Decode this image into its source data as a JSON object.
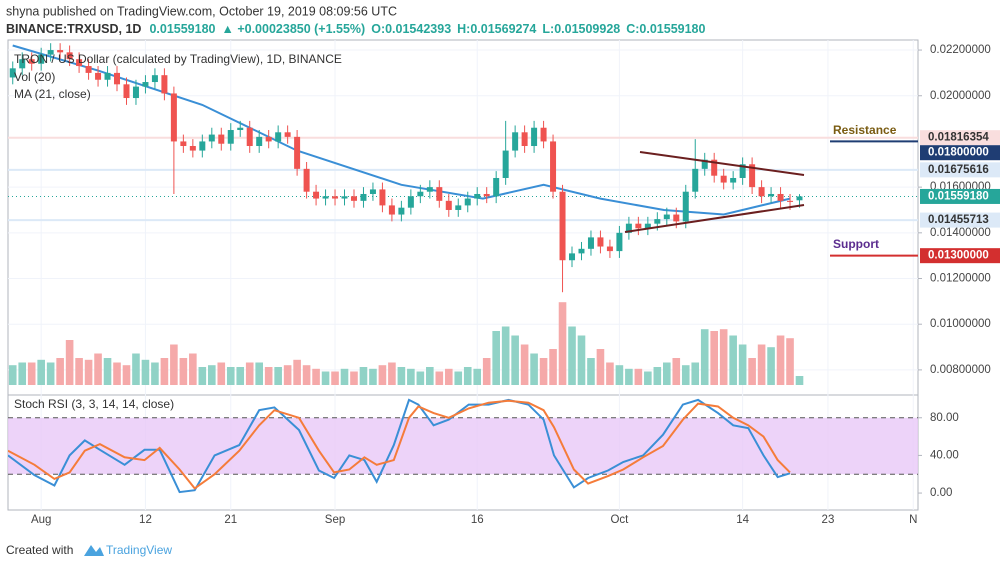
{
  "header": {
    "published": "shyna published on TradingView.com, October 19, 2019 08:09:56 UTC",
    "symbol": "BINANCE:TRXUSD, 1D",
    "price": "0.01559180",
    "change": "▲ +0.00023850 (+1.55%)",
    "open": "O:0.01542393",
    "high": "H:0.01569274",
    "low": "L:0.01509928",
    "close": "C:0.01559180"
  },
  "footer": {
    "created": "Created with",
    "brand": "TradingView"
  },
  "chart_data": {
    "type": "candlestick",
    "title": "TRON / US Dollar (calculated by TradingView), 1D, BINANCE",
    "up_color": "#26a69a",
    "down_color": "#ef5350",
    "open": [
      0.0208,
      0.0212,
      0.0216,
      0.0214,
      0.0218,
      0.022,
      0.0219,
      0.0216,
      0.0213,
      0.021,
      0.0207,
      0.021,
      0.0205,
      0.0199,
      0.0204,
      0.0206,
      0.0209,
      0.0201,
      0.018,
      0.0178,
      0.0176,
      0.018,
      0.0183,
      0.0179,
      0.0185,
      0.0186,
      0.0178,
      0.0182,
      0.018,
      0.0184,
      0.0182,
      0.0168,
      0.0158,
      0.0155,
      0.0156,
      0.0155,
      0.0156,
      0.0154,
      0.0157,
      0.0159,
      0.0152,
      0.0148,
      0.0151,
      0.0156,
      0.0158,
      0.016,
      0.0154,
      0.015,
      0.0152,
      0.0155,
      0.0157,
      0.0156,
      0.0164,
      0.0176,
      0.0184,
      0.0178,
      0.0186,
      0.018,
      0.0158,
      0.0128,
      0.0131,
      0.0133,
      0.0138,
      0.0134,
      0.0132,
      0.014,
      0.0144,
      0.0142,
      0.0144,
      0.0146,
      0.0148,
      0.0145,
      0.0158,
      0.0168,
      0.0172,
      0.0165,
      0.0162,
      0.0164,
      0.017,
      0.016,
      0.0156,
      0.0157,
      0.0154,
      0.01542393
    ],
    "high": [
      0.0215,
      0.0219,
      0.0219,
      0.0221,
      0.0223,
      0.0223,
      0.0222,
      0.0219,
      0.0216,
      0.0213,
      0.0213,
      0.0213,
      0.0208,
      0.0207,
      0.0209,
      0.0212,
      0.0212,
      0.0204,
      0.0183,
      0.0181,
      0.0183,
      0.0186,
      0.0186,
      0.0188,
      0.0189,
      0.0189,
      0.0185,
      0.0185,
      0.0187,
      0.0187,
      0.0185,
      0.0171,
      0.0161,
      0.0159,
      0.0159,
      0.0159,
      0.0159,
      0.016,
      0.0162,
      0.0162,
      0.0155,
      0.0154,
      0.0159,
      0.0161,
      0.0163,
      0.0163,
      0.0157,
      0.0155,
      0.0158,
      0.016,
      0.016,
      0.0167,
      0.0189,
      0.0187,
      0.0187,
      0.0189,
      0.0189,
      0.0183,
      0.0161,
      0.0134,
      0.0136,
      0.0141,
      0.0141,
      0.0137,
      0.0143,
      0.0147,
      0.0147,
      0.0147,
      0.0149,
      0.0151,
      0.0151,
      0.0161,
      0.0181,
      0.0175,
      0.0175,
      0.0168,
      0.0167,
      0.0173,
      0.0173,
      0.0163,
      0.016,
      0.016,
      0.0157,
      0.01569274
    ],
    "low": [
      0.0205,
      0.0209,
      0.0211,
      0.0211,
      0.0215,
      0.0216,
      0.0213,
      0.021,
      0.0207,
      0.0204,
      0.0204,
      0.0202,
      0.0196,
      0.0196,
      0.0201,
      0.0203,
      0.0198,
      0.0157,
      0.0175,
      0.0173,
      0.0173,
      0.0177,
      0.0176,
      0.0176,
      0.0182,
      0.0175,
      0.0175,
      0.0177,
      0.0177,
      0.0179,
      0.0165,
      0.0155,
      0.0152,
      0.0152,
      0.0152,
      0.0152,
      0.0151,
      0.0151,
      0.0154,
      0.0149,
      0.0145,
      0.0145,
      0.0148,
      0.0153,
      0.0155,
      0.0151,
      0.0147,
      0.0147,
      0.0149,
      0.0152,
      0.0153,
      0.0153,
      0.0161,
      0.0173,
      0.0175,
      0.0175,
      0.0177,
      0.0155,
      0.0114,
      0.0125,
      0.0128,
      0.013,
      0.0131,
      0.0129,
      0.0129,
      0.0137,
      0.0139,
      0.0139,
      0.0141,
      0.0143,
      0.0142,
      0.0142,
      0.0155,
      0.0165,
      0.0162,
      0.0159,
      0.0159,
      0.0161,
      0.0157,
      0.0153,
      0.0153,
      0.0151,
      0.015,
      0.01509928
    ],
    "close": [
      0.0212,
      0.0216,
      0.0214,
      0.0218,
      0.022,
      0.0219,
      0.0216,
      0.0213,
      0.021,
      0.0207,
      0.021,
      0.0205,
      0.0199,
      0.0204,
      0.0206,
      0.0209,
      0.0201,
      0.018,
      0.0178,
      0.0176,
      0.018,
      0.0183,
      0.0179,
      0.0185,
      0.0186,
      0.0178,
      0.0182,
      0.018,
      0.0184,
      0.0182,
      0.0168,
      0.0158,
      0.0155,
      0.0156,
      0.0155,
      0.0156,
      0.0154,
      0.0157,
      0.0159,
      0.0152,
      0.0148,
      0.0151,
      0.0156,
      0.0158,
      0.016,
      0.0154,
      0.015,
      0.0152,
      0.0155,
      0.0157,
      0.0156,
      0.0164,
      0.0176,
      0.0184,
      0.0178,
      0.0186,
      0.018,
      0.0158,
      0.0128,
      0.0131,
      0.0133,
      0.0138,
      0.0134,
      0.0132,
      0.014,
      0.0144,
      0.0142,
      0.0144,
      0.0146,
      0.0148,
      0.0145,
      0.0158,
      0.0168,
      0.0172,
      0.0165,
      0.0162,
      0.0164,
      0.017,
      0.016,
      0.0156,
      0.0157,
      0.0154,
      0.0153533,
      0.0155918
    ],
    "xlim": [
      -0.5,
      95.5
    ],
    "xticks": [
      {
        "value": 3,
        "label": "Aug"
      },
      {
        "value": 14,
        "label": "12"
      },
      {
        "value": 23,
        "label": "21"
      },
      {
        "value": 34,
        "label": "Sep"
      },
      {
        "value": 49,
        "label": "16"
      },
      {
        "value": 64,
        "label": "Oct"
      },
      {
        "value": 77,
        "label": "14"
      },
      {
        "value": 86,
        "label": "23"
      },
      {
        "value": 95,
        "label": "N"
      }
    ],
    "ylim": [
      0.00712,
      0.02244
    ],
    "yticks": [
      {
        "value": 0.022,
        "label": "0.02200000"
      },
      {
        "value": 0.02,
        "label": "0.02000000"
      },
      {
        "value": 0.016,
        "label": "0.01600000"
      },
      {
        "value": 0.014,
        "label": "0.01400000"
      },
      {
        "value": 0.012,
        "label": "0.01200000"
      },
      {
        "value": 0.01,
        "label": "0.01000000"
      },
      {
        "value": 0.008,
        "label": "0.00800000"
      }
    ],
    "grid": true,
    "price_labels": [
      {
        "value": 0.01816354,
        "label": "0.01816354",
        "color": "#f9dede",
        "text_color": "#333",
        "line": "full"
      },
      {
        "value": 0.018,
        "label": "0.01800000",
        "color": "#1f3d73",
        "text_color": "#fff",
        "line": "short"
      },
      {
        "value": 0.01675616,
        "label": "0.01675616",
        "color": "#dce9f7",
        "text_color": "#333",
        "line": "full"
      },
      {
        "value": 0.0155918,
        "label": "0.01559180",
        "color": "#26a69a",
        "text_color": "#fff",
        "line": "dotted"
      },
      {
        "value": 0.01455713,
        "label": "0.01455713",
        "color": "#dce9f7",
        "text_color": "#333",
        "line": "full"
      },
      {
        "value": 0.013,
        "label": "0.01300000",
        "color": "#d32f2f",
        "text_color": "#fff",
        "line": "short"
      }
    ],
    "annotations": [
      {
        "text": "Resistance",
        "color": "#7a5c12"
      },
      {
        "text": "Support",
        "color": "#5b2c8f"
      }
    ],
    "volume": {
      "label": "Vol (20)",
      "up_color": "#90d2c6",
      "down_color": "#f5a9a9",
      "values": [
        22,
        25,
        25,
        28,
        25,
        30,
        50,
        30,
        28,
        35,
        30,
        25,
        22,
        35,
        28,
        25,
        30,
        45,
        30,
        35,
        20,
        22,
        25,
        20,
        20,
        25,
        25,
        20,
        20,
        22,
        28,
        22,
        18,
        15,
        15,
        18,
        15,
        20,
        18,
        22,
        25,
        20,
        18,
        15,
        20,
        15,
        18,
        15,
        20,
        18,
        30,
        60,
        65,
        55,
        45,
        35,
        30,
        40,
        92,
        65,
        55,
        30,
        40,
        25,
        22,
        18,
        18,
        15,
        20,
        25,
        30,
        22,
        25,
        62,
        60,
        62,
        55,
        45,
        30,
        45,
        42,
        55,
        52,
        10
      ]
    },
    "ma": {
      "label": "MA (21, close)",
      "color": "#3a8fd6",
      "x": [
        0,
        9,
        20,
        30,
        41,
        49.6,
        56,
        62,
        68.7,
        75,
        82
      ],
      "values": [
        0.0222,
        0.0211,
        0.0196,
        0.0176,
        0.0161,
        0.0155,
        0.0161,
        0.0155,
        0.015,
        0.0148,
        0.0155
      ]
    },
    "stoch": {
      "label": "Stoch RSI (3, 3, 14, 14, close)",
      "ylim": [
        -18,
        101
      ],
      "yticks": [
        {
          "value": 80,
          "label": "80.00"
        },
        {
          "value": 40,
          "label": "40.00"
        },
        {
          "value": 0,
          "label": "0.00"
        }
      ],
      "band": [
        20,
        80
      ],
      "band_color": "#e8c8f7",
      "x": [
        -0.5,
        2.3,
        4.4,
        6,
        7.6,
        9.2,
        11.8,
        13.9,
        15.5,
        17.6,
        19.2,
        21.3,
        23.9,
        26,
        27.6,
        30.2,
        32.3,
        33.9,
        35.5,
        37.1,
        38.4,
        40.2,
        41.8,
        42.8,
        44.4,
        46,
        48.1,
        50.2,
        52.3,
        54.4,
        56,
        57.1,
        59.2,
        60.7,
        62.8,
        64.4,
        66.5,
        68.6,
        70.7,
        72.3,
        74.4,
        76,
        77.6,
        79.2,
        80.7,
        82
      ],
      "series": [
        {
          "color": "#3a8fd6",
          "values": [
            40,
            19,
            8,
            40,
            56,
            46,
            30,
            46,
            46,
            1,
            3,
            40,
            51,
            88,
            91,
            67,
            24,
            16,
            40,
            35,
            12,
            51,
            99,
            94,
            72,
            78,
            94,
            94,
            99,
            94,
            78,
            40,
            6,
            16,
            24,
            33,
            40,
            62,
            94,
            99,
            85,
            72,
            69,
            40,
            17,
            21
          ]
        },
        {
          "color": "#f57c3a",
          "values": [
            45,
            30,
            15,
            22,
            45,
            52,
            38,
            35,
            48,
            25,
            5,
            20,
            45,
            72,
            88,
            80,
            45,
            22,
            25,
            38,
            30,
            35,
            80,
            92,
            85,
            80,
            90,
            96,
            98,
            96,
            88,
            70,
            25,
            10,
            18,
            25,
            38,
            50,
            78,
            95,
            92,
            80,
            72,
            60,
            35,
            22
          ]
        }
      ]
    }
  }
}
